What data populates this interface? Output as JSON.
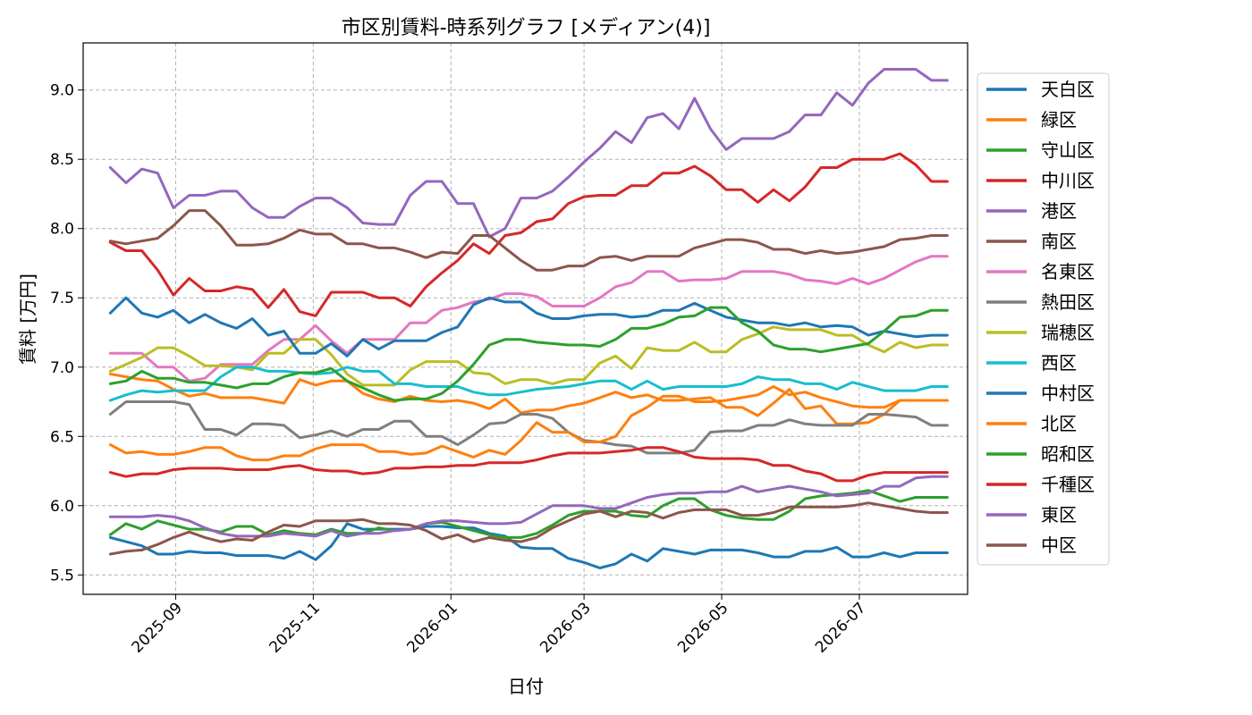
{
  "chart_data": {
    "type": "line",
    "title": "市区別賃料-時系列グラフ [メディアン(4)]",
    "xlabel": "日付",
    "ylabel": "賃料 [万円]",
    "ylim": [
      5.36,
      9.34
    ],
    "yticks": [
      5.5,
      6.0,
      6.5,
      7.0,
      7.5,
      8.0,
      8.5,
      9.0
    ],
    "ytick_labels": [
      "5.5",
      "6.0",
      "6.5",
      "7.0",
      "7.5",
      "8.0",
      "8.5",
      "9.0"
    ],
    "xlim": [
      "2025-07-22",
      "2026-08-18"
    ],
    "xticks": [
      "2025-09-01",
      "2025-11-01",
      "2026-01-01",
      "2026-03-01",
      "2026-05-01",
      "2026-07-01"
    ],
    "xtick_labels": [
      "2025-09",
      "2025-11",
      "2026-01",
      "2026-03",
      "2026-05",
      "2026-07"
    ],
    "grid": true,
    "legend_position": "right-outside",
    "x_start": "2025-08-03",
    "x_step_days": 7,
    "x_count": 54,
    "series": [
      {
        "name": "天白区",
        "color": "#1f77b4",
        "values": [
          5.77,
          5.74,
          5.71,
          5.65,
          5.65,
          5.67,
          5.66,
          5.66,
          5.64,
          5.64,
          5.64,
          5.62,
          5.67,
          5.61,
          5.71,
          5.87,
          5.83,
          5.83,
          5.83,
          5.83,
          5.85,
          5.85,
          5.84,
          5.84,
          5.8,
          5.78,
          5.7,
          5.69,
          5.69,
          5.62,
          5.59,
          5.55,
          5.58,
          5.65,
          5.6,
          5.69,
          5.67,
          5.65,
          5.68,
          5.68,
          5.68,
          5.66,
          5.63,
          5.63,
          5.67,
          5.67,
          5.7,
          5.63,
          5.63,
          5.66,
          5.63,
          5.66,
          5.66,
          5.66
        ]
      },
      {
        "name": "緑区",
        "color": "#ff7f0e",
        "values": [
          6.95,
          6.93,
          6.91,
          6.9,
          6.84,
          6.79,
          6.81,
          6.78,
          6.78,
          6.78,
          6.76,
          6.74,
          6.91,
          6.87,
          6.9,
          6.9,
          6.81,
          6.77,
          6.75,
          6.79,
          6.76,
          6.75,
          6.76,
          6.74,
          6.7,
          6.77,
          6.67,
          6.69,
          6.69,
          6.72,
          6.74,
          6.78,
          6.82,
          6.78,
          6.8,
          6.76,
          6.76,
          6.77,
          6.78,
          6.71,
          6.71,
          6.65,
          6.74,
          6.84,
          6.7,
          6.72,
          6.59,
          6.59,
          6.6,
          6.66,
          6.76,
          6.76,
          6.76,
          6.76
        ]
      },
      {
        "name": "守山区",
        "color": "#2ca02c",
        "values": [
          5.79,
          5.87,
          5.83,
          5.89,
          5.86,
          5.83,
          5.83,
          5.81,
          5.85,
          5.85,
          5.79,
          5.82,
          5.8,
          5.79,
          5.83,
          5.8,
          5.8,
          5.84,
          5.82,
          5.83,
          5.87,
          5.88,
          5.85,
          5.82,
          5.79,
          5.77,
          5.77,
          5.8,
          5.86,
          5.93,
          5.96,
          5.96,
          5.96,
          5.93,
          5.92,
          6.0,
          6.05,
          6.05,
          5.97,
          5.93,
          5.91,
          5.9,
          5.9,
          5.96,
          6.05,
          6.07,
          6.08,
          6.09,
          6.11,
          6.07,
          6.03,
          6.06,
          6.06,
          6.06
        ]
      },
      {
        "name": "中川区",
        "color": "#d62728",
        "values": [
          7.9,
          7.84,
          7.84,
          7.7,
          7.52,
          7.64,
          7.55,
          7.55,
          7.58,
          7.56,
          7.43,
          7.56,
          7.4,
          7.37,
          7.54,
          7.54,
          7.54,
          7.5,
          7.5,
          7.44,
          7.58,
          7.68,
          7.77,
          7.89,
          7.82,
          7.95,
          7.97,
          8.05,
          8.07,
          8.18,
          8.23,
          8.24,
          8.24,
          8.31,
          8.31,
          8.4,
          8.4,
          8.45,
          8.38,
          8.28,
          8.28,
          8.19,
          8.28,
          8.2,
          8.3,
          8.44,
          8.44,
          8.5,
          8.5,
          8.5,
          8.54,
          8.46,
          8.34,
          8.34
        ]
      },
      {
        "name": "港区",
        "color": "#9467bd",
        "values": [
          8.44,
          8.33,
          8.43,
          8.4,
          8.15,
          8.24,
          8.24,
          8.27,
          8.27,
          8.15,
          8.08,
          8.08,
          8.16,
          8.22,
          8.22,
          8.15,
          8.04,
          8.03,
          8.03,
          8.24,
          8.34,
          8.34,
          8.18,
          8.18,
          7.94,
          8.0,
          8.22,
          8.22,
          8.27,
          8.37,
          8.48,
          8.58,
          8.7,
          8.62,
          8.8,
          8.83,
          8.72,
          8.94,
          8.72,
          8.57,
          8.65,
          8.65,
          8.65,
          8.7,
          8.82,
          8.82,
          8.98,
          8.89,
          9.05,
          9.15,
          9.15,
          9.15,
          9.07,
          9.07
        ]
      },
      {
        "name": "南区",
        "color": "#8c564b",
        "values": [
          7.91,
          7.89,
          7.91,
          7.93,
          8.02,
          8.13,
          8.13,
          8.02,
          7.88,
          7.88,
          7.89,
          7.93,
          7.99,
          7.96,
          7.96,
          7.89,
          7.89,
          7.86,
          7.86,
          7.83,
          7.79,
          7.83,
          7.82,
          7.95,
          7.95,
          7.86,
          7.77,
          7.7,
          7.7,
          7.73,
          7.73,
          7.79,
          7.8,
          7.77,
          7.8,
          7.8,
          7.8,
          7.86,
          7.89,
          7.92,
          7.92,
          7.9,
          7.85,
          7.85,
          7.82,
          7.84,
          7.82,
          7.83,
          7.85,
          7.87,
          7.92,
          7.93,
          7.95,
          7.95
        ]
      },
      {
        "name": "名東区",
        "color": "#e377c2",
        "values": [
          7.1,
          7.1,
          7.1,
          7.0,
          7.0,
          6.9,
          6.92,
          7.02,
          7.02,
          7.02,
          7.12,
          7.2,
          7.2,
          7.3,
          7.19,
          7.1,
          7.2,
          7.2,
          7.2,
          7.32,
          7.32,
          7.41,
          7.43,
          7.47,
          7.49,
          7.53,
          7.53,
          7.51,
          7.44,
          7.44,
          7.44,
          7.5,
          7.58,
          7.61,
          7.69,
          7.69,
          7.62,
          7.63,
          7.63,
          7.64,
          7.69,
          7.69,
          7.69,
          7.67,
          7.63,
          7.62,
          7.6,
          7.64,
          7.6,
          7.64,
          7.7,
          7.76,
          7.8,
          7.8
        ]
      },
      {
        "name": "熱田区",
        "color": "#7f7f7f",
        "values": [
          6.66,
          6.75,
          6.75,
          6.75,
          6.75,
          6.73,
          6.55,
          6.55,
          6.51,
          6.59,
          6.59,
          6.58,
          6.49,
          6.51,
          6.54,
          6.5,
          6.55,
          6.55,
          6.61,
          6.61,
          6.5,
          6.5,
          6.44,
          6.51,
          6.59,
          6.6,
          6.66,
          6.66,
          6.63,
          6.53,
          6.47,
          6.46,
          6.44,
          6.43,
          6.38,
          6.38,
          6.38,
          6.4,
          6.53,
          6.54,
          6.54,
          6.58,
          6.58,
          6.62,
          6.59,
          6.58,
          6.58,
          6.58,
          6.66,
          6.66,
          6.65,
          6.64,
          6.58,
          6.58
        ]
      },
      {
        "name": "瑞穂区",
        "color": "#bcbd22",
        "values": [
          6.97,
          7.02,
          7.07,
          7.14,
          7.14,
          7.08,
          7.01,
          7.01,
          7.0,
          6.98,
          7.1,
          7.1,
          7.2,
          7.2,
          7.09,
          6.95,
          6.87,
          6.87,
          6.87,
          6.98,
          7.04,
          7.04,
          7.04,
          6.96,
          6.95,
          6.88,
          6.91,
          6.91,
          6.88,
          6.91,
          6.91,
          7.03,
          7.08,
          6.99,
          7.14,
          7.12,
          7.12,
          7.18,
          7.11,
          7.11,
          7.2,
          7.24,
          7.29,
          7.27,
          7.27,
          7.27,
          7.23,
          7.23,
          7.16,
          7.11,
          7.18,
          7.14,
          7.16,
          7.16
        ]
      },
      {
        "name": "西区",
        "color": "#17becf",
        "values": [
          6.76,
          6.8,
          6.83,
          6.82,
          6.83,
          6.83,
          6.83,
          6.93,
          7.0,
          7.0,
          6.97,
          6.97,
          6.96,
          6.95,
          6.96,
          7.0,
          6.97,
          6.97,
          6.88,
          6.88,
          6.86,
          6.86,
          6.86,
          6.82,
          6.8,
          6.8,
          6.82,
          6.84,
          6.85,
          6.86,
          6.88,
          6.9,
          6.9,
          6.84,
          6.9,
          6.84,
          6.86,
          6.86,
          6.86,
          6.86,
          6.88,
          6.93,
          6.91,
          6.91,
          6.88,
          6.88,
          6.84,
          6.89,
          6.86,
          6.83,
          6.83,
          6.83,
          6.86,
          6.86
        ]
      },
      {
        "name": "中村区",
        "color": "#1f77b4",
        "values": [
          7.39,
          7.5,
          7.39,
          7.36,
          7.41,
          7.32,
          7.38,
          7.32,
          7.28,
          7.35,
          7.23,
          7.26,
          7.1,
          7.1,
          7.17,
          7.08,
          7.2,
          7.13,
          7.19,
          7.19,
          7.19,
          7.25,
          7.29,
          7.45,
          7.5,
          7.47,
          7.47,
          7.39,
          7.35,
          7.35,
          7.37,
          7.38,
          7.38,
          7.36,
          7.37,
          7.41,
          7.41,
          7.46,
          7.41,
          7.36,
          7.34,
          7.32,
          7.32,
          7.3,
          7.32,
          7.29,
          7.3,
          7.29,
          7.23,
          7.26,
          7.24,
          7.22,
          7.23,
          7.23
        ]
      },
      {
        "name": "北区",
        "color": "#ff7f0e",
        "values": [
          6.44,
          6.38,
          6.39,
          6.37,
          6.37,
          6.39,
          6.42,
          6.42,
          6.36,
          6.33,
          6.33,
          6.36,
          6.36,
          6.41,
          6.44,
          6.44,
          6.44,
          6.39,
          6.39,
          6.37,
          6.38,
          6.43,
          6.39,
          6.35,
          6.4,
          6.37,
          6.47,
          6.6,
          6.53,
          6.53,
          6.46,
          6.46,
          6.5,
          6.65,
          6.71,
          6.79,
          6.79,
          6.75,
          6.75,
          6.76,
          6.78,
          6.8,
          6.86,
          6.8,
          6.82,
          6.78,
          6.75,
          6.72,
          6.71,
          6.71,
          6.76,
          6.76,
          6.76,
          6.76
        ]
      },
      {
        "name": "昭和区",
        "color": "#2ca02c",
        "values": [
          6.88,
          6.9,
          6.97,
          6.92,
          6.92,
          6.89,
          6.89,
          6.87,
          6.85,
          6.88,
          6.88,
          6.93,
          6.96,
          6.96,
          6.99,
          6.9,
          6.85,
          6.8,
          6.76,
          6.77,
          6.77,
          6.81,
          6.9,
          7.02,
          7.16,
          7.2,
          7.2,
          7.18,
          7.17,
          7.16,
          7.16,
          7.15,
          7.2,
          7.28,
          7.28,
          7.31,
          7.36,
          7.37,
          7.43,
          7.43,
          7.32,
          7.26,
          7.16,
          7.13,
          7.13,
          7.11,
          7.13,
          7.15,
          7.17,
          7.26,
          7.36,
          7.37,
          7.41,
          7.41
        ]
      },
      {
        "name": "千種区",
        "color": "#d62728",
        "values": [
          6.24,
          6.21,
          6.23,
          6.23,
          6.26,
          6.27,
          6.27,
          6.27,
          6.26,
          6.26,
          6.26,
          6.28,
          6.29,
          6.26,
          6.25,
          6.25,
          6.23,
          6.24,
          6.27,
          6.27,
          6.28,
          6.28,
          6.29,
          6.29,
          6.31,
          6.31,
          6.31,
          6.33,
          6.36,
          6.38,
          6.38,
          6.38,
          6.39,
          6.4,
          6.42,
          6.42,
          6.39,
          6.35,
          6.34,
          6.34,
          6.34,
          6.33,
          6.29,
          6.29,
          6.25,
          6.23,
          6.18,
          6.18,
          6.22,
          6.24,
          6.24,
          6.24,
          6.24,
          6.24
        ]
      },
      {
        "name": "東区",
        "color": "#9467bd",
        "values": [
          5.92,
          5.92,
          5.92,
          5.93,
          5.92,
          5.89,
          5.84,
          5.8,
          5.78,
          5.78,
          5.78,
          5.8,
          5.79,
          5.78,
          5.82,
          5.78,
          5.8,
          5.8,
          5.82,
          5.83,
          5.87,
          5.89,
          5.89,
          5.88,
          5.87,
          5.87,
          5.88,
          5.94,
          6.0,
          6.0,
          6.0,
          5.98,
          5.98,
          6.02,
          6.06,
          6.08,
          6.09,
          6.09,
          6.1,
          6.1,
          6.14,
          6.1,
          6.12,
          6.14,
          6.12,
          6.1,
          6.07,
          6.08,
          6.09,
          6.14,
          6.14,
          6.2,
          6.21,
          6.21
        ]
      },
      {
        "name": "中区",
        "color": "#8c564b",
        "values": [
          5.65,
          5.67,
          5.68,
          5.72,
          5.77,
          5.81,
          5.77,
          5.74,
          5.76,
          5.75,
          5.81,
          5.86,
          5.85,
          5.89,
          5.89,
          5.89,
          5.9,
          5.87,
          5.87,
          5.86,
          5.82,
          5.76,
          5.79,
          5.74,
          5.77,
          5.75,
          5.74,
          5.77,
          5.84,
          5.89,
          5.94,
          5.96,
          5.92,
          5.96,
          5.95,
          5.91,
          5.95,
          5.97,
          5.97,
          5.97,
          5.93,
          5.93,
          5.95,
          5.99,
          5.99,
          5.99,
          5.99,
          6.0,
          6.02,
          6.0,
          5.98,
          5.96,
          5.95,
          5.95
        ]
      }
    ]
  }
}
